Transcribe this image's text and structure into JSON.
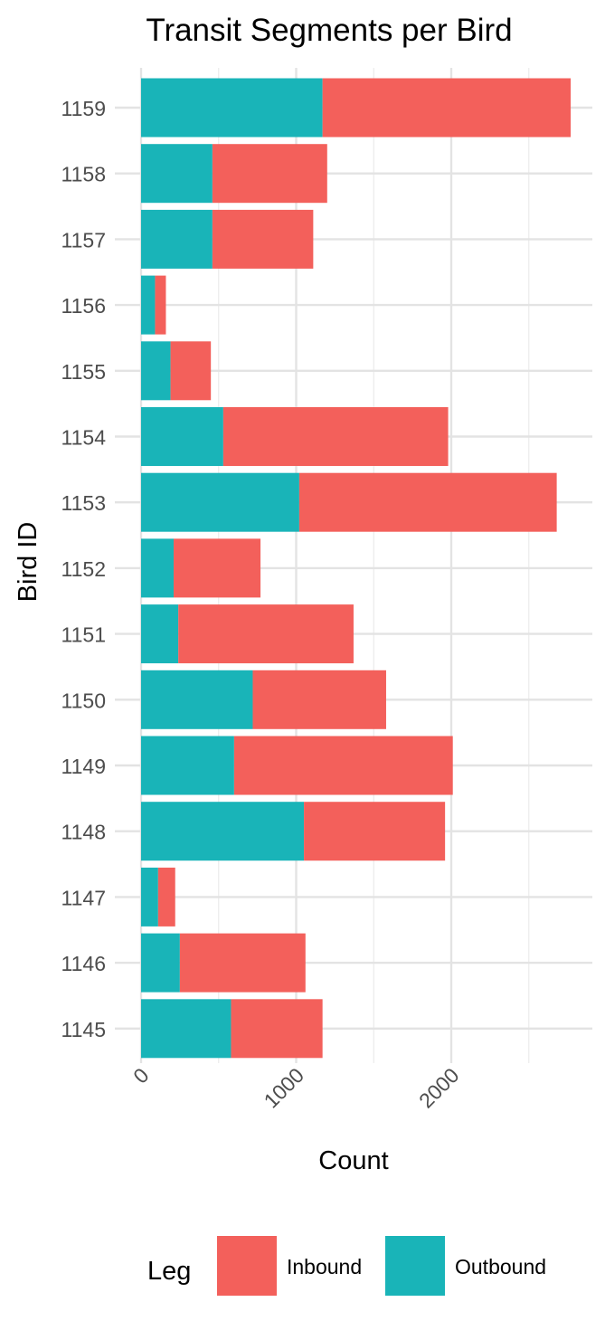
{
  "chart_data": {
    "type": "bar",
    "orientation": "horizontal",
    "stacked": true,
    "title": "Transit Segments per Bird",
    "xlabel": "Count",
    "ylabel": "Bird ID",
    "xlim": [
      0,
      2880
    ],
    "xticks": [
      0,
      1000,
      2000
    ],
    "xtick_labels": [
      "0",
      "1000",
      "2000"
    ],
    "categories": [
      "1145",
      "1146",
      "1147",
      "1148",
      "1149",
      "1150",
      "1151",
      "1152",
      "1153",
      "1154",
      "1155",
      "1156",
      "1157",
      "1158",
      "1159"
    ],
    "series": [
      {
        "name": "Outbound",
        "color": "#19B4B8",
        "values": [
          580,
          250,
          110,
          1050,
          600,
          720,
          240,
          210,
          1020,
          530,
          190,
          90,
          460,
          460,
          1170
        ]
      },
      {
        "name": "Inbound",
        "color": "#F3605B",
        "values": [
          590,
          810,
          110,
          910,
          1410,
          860,
          1130,
          560,
          1660,
          1450,
          260,
          70,
          650,
          740,
          1600
        ]
      }
    ],
    "legend": {
      "title": "Leg",
      "position": "bottom",
      "entries": [
        {
          "label": "Inbound",
          "color": "#F3605B"
        },
        {
          "label": "Outbound",
          "color": "#19B4B8"
        }
      ]
    },
    "grid": true
  }
}
